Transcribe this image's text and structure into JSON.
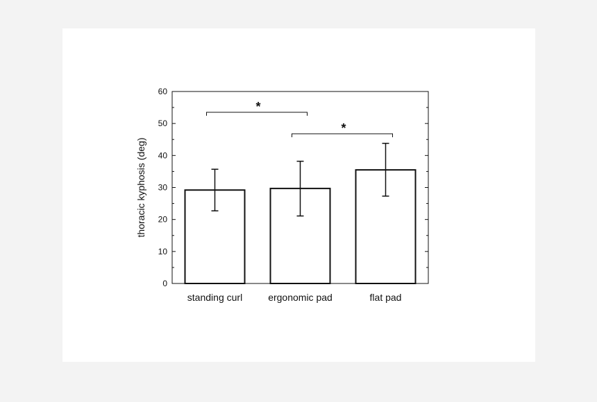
{
  "chart_data": {
    "type": "bar",
    "title": "",
    "xlabel": "",
    "ylabel": "thoracic kyphosis (deg)",
    "ylim": [
      0,
      60
    ],
    "yticks": [
      0,
      10,
      20,
      30,
      40,
      50,
      60
    ],
    "grid": false,
    "categories": [
      "standing curl",
      "ergonomic pad",
      "flat pad"
    ],
    "values": [
      29.2,
      29.7,
      35.5
    ],
    "error_low": [
      22.7,
      21.1,
      27.3
    ],
    "error_high": [
      35.7,
      38.2,
      43.8
    ],
    "significance": [
      {
        "from": "standing curl",
        "to": "ergonomic pad",
        "label": "*",
        "y": 53.5
      },
      {
        "from": "ergonomic pad",
        "to": "flat pad",
        "label": "*",
        "y": 46.8
      }
    ],
    "colors": {
      "bar_fill": "#ffffff",
      "bar_stroke": "#111111",
      "axis": "#111111",
      "background": "#f3f3f3"
    }
  }
}
